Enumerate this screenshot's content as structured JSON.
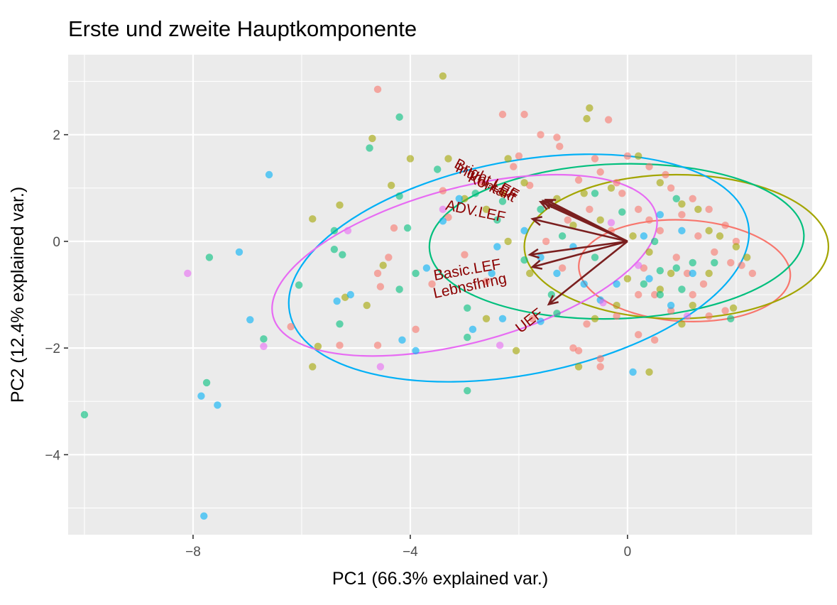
{
  "chart_data": {
    "type": "scatter",
    "title": "Erste und zweite Hauptkomponente",
    "xlabel": "PC1 (66.3% explained var.)",
    "ylabel": "PC2 (12.4% explained var.)",
    "xlim": [
      -10.3,
      3.4
    ],
    "ylim": [
      -5.5,
      3.5
    ],
    "x_ticks": [
      -8,
      -4,
      0
    ],
    "x_tick_labels": [
      "−8",
      "−4",
      "0"
    ],
    "y_ticks": [
      -4,
      -2,
      0,
      2
    ],
    "y_tick_labels": [
      "−4",
      "−2",
      "0",
      "2"
    ],
    "grid": true,
    "legend": "none",
    "groups": [
      {
        "color": "#F8766D",
        "points": [
          [
            -4.6,
            2.85
          ],
          [
            -2.3,
            2.38
          ],
          [
            -1.9,
            2.38
          ],
          [
            -0.35,
            2.28
          ],
          [
            -1.6,
            2.0
          ],
          [
            -1.3,
            1.95
          ],
          [
            -1.25,
            1.78
          ],
          [
            -0.6,
            1.55
          ],
          [
            -2.0,
            1.6
          ],
          [
            -2.1,
            1.4
          ],
          [
            -2.7,
            1.1
          ],
          [
            -3.4,
            0.95
          ],
          [
            -3.3,
            0.45
          ],
          [
            -4.3,
            0.25
          ],
          [
            -3.0,
            -0.25
          ],
          [
            -4.4,
            -0.3
          ],
          [
            -4.6,
            -0.6
          ],
          [
            -4.55,
            -0.85
          ],
          [
            -3.6,
            -0.8
          ],
          [
            -2.6,
            -0.75
          ],
          [
            -1.2,
            -0.5
          ],
          [
            -3.9,
            -1.65
          ],
          [
            -4.6,
            -1.95
          ],
          [
            -5.3,
            -1.95
          ],
          [
            -6.2,
            -1.6
          ],
          [
            -1.75,
            -1.45
          ],
          [
            -0.75,
            -1.55
          ],
          [
            -0.9,
            -2.05
          ],
          [
            -0.5,
            -2.2
          ],
          [
            -0.5,
            -2.35
          ],
          [
            -1.0,
            -2.0
          ],
          [
            -0.2,
            -1.4
          ],
          [
            0.2,
            -1.75
          ],
          [
            0.5,
            -1.85
          ],
          [
            0.2,
            -1.0
          ],
          [
            0.5,
            -1.0
          ],
          [
            0.8,
            -1.3
          ],
          [
            1.2,
            -1.0
          ],
          [
            1.5,
            -1.4
          ],
          [
            1.8,
            -1.3
          ],
          [
            -0.3,
            0.2
          ],
          [
            -0.7,
            0.6
          ],
          [
            -1.1,
            0.4
          ],
          [
            -1.5,
            0.0
          ],
          [
            -1.8,
            1.05
          ],
          [
            -0.5,
            1.3
          ],
          [
            0.0,
            1.6
          ],
          [
            0.4,
            1.4
          ],
          [
            0.8,
            1.0
          ],
          [
            1.0,
            0.5
          ],
          [
            1.3,
            0.1
          ],
          [
            1.6,
            -0.2
          ],
          [
            1.9,
            -0.4
          ],
          [
            2.1,
            -0.45
          ],
          [
            2.3,
            -0.6
          ],
          [
            0.6,
            0.2
          ],
          [
            0.9,
            -0.3
          ],
          [
            0.3,
            -0.5
          ],
          [
            -0.1,
            0.9
          ],
          [
            0.2,
            0.6
          ],
          [
            1.2,
            0.8
          ],
          [
            0.7,
            1.25
          ],
          [
            1.5,
            0.6
          ],
          [
            1.8,
            0.3
          ],
          [
            2.0,
            0.0
          ],
          [
            -0.9,
            1.15
          ],
          [
            -0.2,
            1.1
          ],
          [
            0.4,
            0.4
          ],
          [
            1.1,
            -0.6
          ],
          [
            1.4,
            -0.8
          ]
        ]
      },
      {
        "color": "#A3A500",
        "points": [
          [
            -3.4,
            3.1
          ],
          [
            -0.7,
            2.5
          ],
          [
            -0.75,
            2.3
          ],
          [
            -4.7,
            1.93
          ],
          [
            -4.0,
            1.55
          ],
          [
            -3.3,
            1.55
          ],
          [
            -2.2,
            1.55
          ],
          [
            -4.35,
            1.05
          ],
          [
            -5.3,
            0.68
          ],
          [
            -5.8,
            0.42
          ],
          [
            -4.5,
            -0.45
          ],
          [
            -4.8,
            -1.2
          ],
          [
            -5.2,
            -1.05
          ],
          [
            -5.8,
            -2.35
          ],
          [
            -5.7,
            -1.97
          ],
          [
            -2.6,
            -1.45
          ],
          [
            -2.05,
            -2.05
          ],
          [
            -0.9,
            -2.35
          ],
          [
            -0.6,
            -1.45
          ],
          [
            0.4,
            -2.45
          ],
          [
            1.0,
            -1.55
          ],
          [
            1.2,
            -1.2
          ],
          [
            1.95,
            -1.25
          ],
          [
            -1.9,
            1.1
          ],
          [
            -2.3,
            0.9
          ],
          [
            -3.0,
            0.8
          ],
          [
            -2.6,
            0.6
          ],
          [
            -1.3,
            0.8
          ],
          [
            -0.8,
            0.9
          ],
          [
            -0.3,
            1.0
          ],
          [
            0.2,
            1.6
          ],
          [
            0.6,
            1.1
          ],
          [
            1.0,
            0.7
          ],
          [
            1.5,
            0.2
          ],
          [
            2.0,
            -0.1
          ],
          [
            0.4,
            -0.2
          ],
          [
            0.8,
            -0.6
          ],
          [
            -0.5,
            0.4
          ],
          [
            0.1,
            0.1
          ],
          [
            -1.0,
            0.3
          ],
          [
            1.3,
            0.6
          ],
          [
            1.7,
            0.1
          ],
          [
            2.2,
            -0.3
          ],
          [
            0.0,
            -0.7
          ],
          [
            0.6,
            -0.9
          ],
          [
            -0.2,
            -1.2
          ],
          [
            1.5,
            -0.6
          ],
          [
            -1.8,
            -0.6
          ],
          [
            -2.2,
            0.0
          ]
        ]
      },
      {
        "color": "#00BF7D",
        "points": [
          [
            -4.2,
            2.33
          ],
          [
            -4.75,
            1.75
          ],
          [
            -10.0,
            -3.25
          ],
          [
            -7.7,
            -0.3
          ],
          [
            -7.75,
            -2.65
          ],
          [
            -6.7,
            -1.83
          ],
          [
            -6.05,
            -0.82
          ],
          [
            -5.4,
            -0.15
          ],
          [
            -5.25,
            -0.25
          ],
          [
            -5.3,
            -1.55
          ],
          [
            -5.4,
            0.2
          ],
          [
            -4.2,
            0.85
          ],
          [
            -4.05,
            0.25
          ],
          [
            -3.5,
            1.35
          ],
          [
            -2.8,
            0.9
          ],
          [
            -4.2,
            -0.9
          ],
          [
            -3.9,
            -0.6
          ],
          [
            -2.95,
            -1.25
          ],
          [
            -2.95,
            -1.8
          ],
          [
            -2.95,
            -2.8
          ],
          [
            -1.3,
            -1.35
          ],
          [
            -1.4,
            -1.0
          ],
          [
            -1.9,
            -0.35
          ],
          [
            -1.2,
            0.1
          ],
          [
            -0.6,
            0.9
          ],
          [
            -0.1,
            0.55
          ],
          [
            0.5,
            0.0
          ],
          [
            0.9,
            -0.5
          ],
          [
            1.2,
            -0.4
          ],
          [
            1.6,
            -0.4
          ],
          [
            1.9,
            -1.45
          ],
          [
            0.6,
            -1.0
          ],
          [
            0.3,
            -0.8
          ],
          [
            -0.6,
            -0.3
          ],
          [
            -2.3,
            0.75
          ],
          [
            -2.4,
            0.4
          ],
          [
            -1.6,
            0.6
          ],
          [
            0.9,
            0.8
          ],
          [
            0.6,
            -0.55
          ],
          [
            1.0,
            -0.9
          ]
        ]
      },
      {
        "color": "#00B0F6",
        "points": [
          [
            -6.6,
            1.25
          ],
          [
            -7.15,
            -0.2
          ],
          [
            -6.95,
            -1.47
          ],
          [
            -7.85,
            -2.9
          ],
          [
            -7.55,
            -3.07
          ],
          [
            -7.8,
            -5.15
          ],
          [
            -5.1,
            -1.0
          ],
          [
            -5.35,
            -1.12
          ],
          [
            -3.4,
            0.38
          ],
          [
            -3.1,
            0.8
          ],
          [
            -2.4,
            -0.1
          ],
          [
            -3.7,
            -0.5
          ],
          [
            -2.3,
            -1.45
          ],
          [
            -2.85,
            -1.65
          ],
          [
            -4.15,
            -1.85
          ],
          [
            -3.9,
            -2.05
          ],
          [
            -2.5,
            -0.6
          ],
          [
            -1.6,
            -0.3
          ],
          [
            -1.3,
            -0.6
          ],
          [
            -0.8,
            -0.8
          ],
          [
            -0.5,
            -1.1
          ],
          [
            0.3,
            0.1
          ],
          [
            0.6,
            0.5
          ],
          [
            1.0,
            0.2
          ],
          [
            1.2,
            -0.6
          ],
          [
            0.8,
            -1.2
          ],
          [
            0.1,
            -2.45
          ],
          [
            -0.2,
            -0.8
          ],
          [
            -1.6,
            -1.5
          ],
          [
            -1.0,
            -0.1
          ],
          [
            -1.9,
            0.2
          ],
          [
            0.4,
            -0.7
          ]
        ]
      },
      {
        "color": "#E76BF3",
        "points": [
          [
            -8.1,
            -0.6
          ],
          [
            -6.7,
            -1.97
          ],
          [
            -4.55,
            -2.35
          ],
          [
            -5.15,
            0.2
          ],
          [
            -3.4,
            0.6
          ],
          [
            -2.35,
            -1.95
          ],
          [
            -0.45,
            -1.15
          ],
          [
            1.1,
            -1.4
          ],
          [
            0.2,
            -0.45
          ],
          [
            -0.3,
            0.35
          ]
        ]
      }
    ],
    "ellipses": [
      {
        "color": "#F8766D",
        "center": [
          1.05,
          -0.55
        ],
        "rx": 1.95,
        "ry": 0.95,
        "angle": -3
      },
      {
        "color": "#A3A500",
        "center": [
          0.9,
          -0.1
        ],
        "rx": 2.8,
        "ry": 1.35,
        "angle": 0
      },
      {
        "color": "#00BF7D",
        "center": [
          -0.2,
          0.0
        ],
        "rx": 3.45,
        "ry": 1.45,
        "angle": 2
      },
      {
        "color": "#00B0F6",
        "center": [
          -2.0,
          -0.5
        ],
        "rx": 4.3,
        "ry": 2.0,
        "angle": 11
      },
      {
        "color": "#E76BF3",
        "center": [
          -3.0,
          -0.45
        ],
        "rx": 3.65,
        "ry": 1.45,
        "angle": 15
      }
    ],
    "loadings": [
      {
        "label": "Bright.LEF",
        "x": -1.5,
        "y": 0.78
      },
      {
        "label": "Intimi.LEF",
        "x": -1.55,
        "y": 0.76
      },
      {
        "label": "Kontakt",
        "x": -1.6,
        "y": 0.74
      },
      {
        "label": "ADV.LEF",
        "x": -1.75,
        "y": 0.42
      },
      {
        "label": "Basic.LEF",
        "x": -1.8,
        "y": -0.25
      },
      {
        "label": "Lebnsfhrng",
        "x": -1.75,
        "y": -0.48
      },
      {
        "label": "UEF",
        "x": -1.45,
        "y": -1.18
      }
    ],
    "loading_labels": [
      {
        "text": "Bright.LEF",
        "x": -2.6,
        "y": 1.15,
        "angle": 28
      },
      {
        "text": "Intimi.LEF",
        "x": -2.6,
        "y": 1.1,
        "angle": 27
      },
      {
        "text": "Kontakt",
        "x": -2.5,
        "y": 1.0,
        "angle": 25
      },
      {
        "text": "ADV.LEF",
        "x": -2.8,
        "y": 0.55,
        "angle": 12
      },
      {
        "text": "Basic.LEF",
        "x": -2.95,
        "y": -0.55,
        "angle": -10
      },
      {
        "text": "Lebnsfhrng",
        "x": -2.9,
        "y": -0.85,
        "angle": -12
      },
      {
        "text": "UEF",
        "x": -1.8,
        "y": -1.5,
        "angle": -38
      }
    ]
  }
}
